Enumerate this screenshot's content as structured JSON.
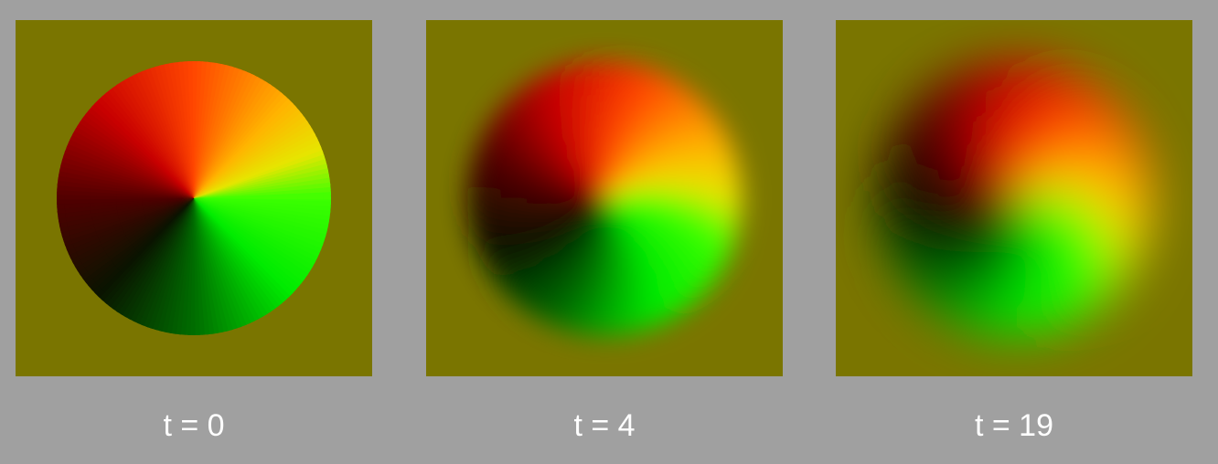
{
  "colors": {
    "page_background": "#a0a0a0",
    "field_background": "#7a7500",
    "caption_text": "#ffffff"
  },
  "panels": [
    {
      "caption": "t = 0",
      "blur": 0,
      "twist": 0
    },
    {
      "caption": "t = 4",
      "blur": 14,
      "twist": 25
    },
    {
      "caption": "t = 19",
      "blur": 26,
      "twist": 55
    }
  ]
}
